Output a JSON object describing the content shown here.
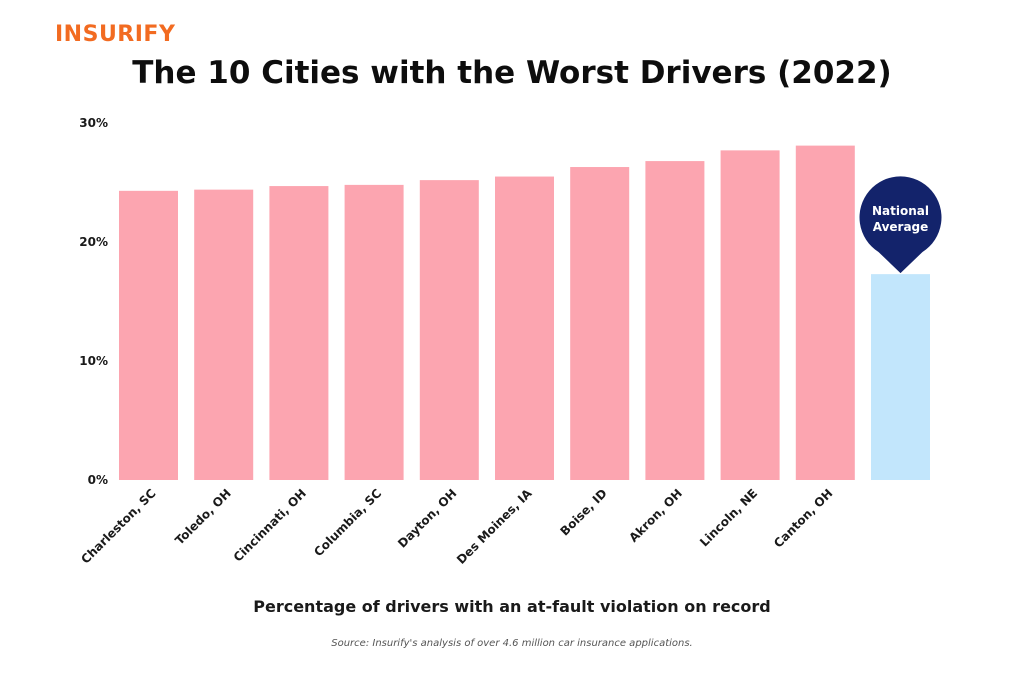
{
  "brand": {
    "logo_text": "INSURIFY",
    "logo_color": "#f26b21"
  },
  "chart_data": {
    "type": "bar",
    "title": "The 10 Cities with the Worst Drivers (2022)",
    "xlabel": "Percentage of drivers with an at-fault violation on record",
    "ylabel": "",
    "ylim": [
      0,
      30
    ],
    "yticks": [
      0,
      10,
      20,
      30
    ],
    "ytick_labels": [
      "0%",
      "10%",
      "20%",
      "30%"
    ],
    "categories": [
      "Charleston, SC",
      "Toledo, OH",
      "Cincinnati, OH",
      "Columbia, SC",
      "Dayton, OH",
      "Des Moines, IA",
      "Boise, ID",
      "Akron, OH",
      "Lincoln, NE",
      "Canton, OH",
      ""
    ],
    "values": [
      24.3,
      24.4,
      24.7,
      24.8,
      25.2,
      25.5,
      26.3,
      26.8,
      27.7,
      28.1,
      17.3
    ],
    "bar_colors": [
      "#fca5b0",
      "#fca5b0",
      "#fca5b0",
      "#fca5b0",
      "#fca5b0",
      "#fca5b0",
      "#fca5b0",
      "#fca5b0",
      "#fca5b0",
      "#fca5b0",
      "#c2e6fc"
    ],
    "marker": {
      "label_line1": "National",
      "label_line2": "Average",
      "color": "#13236b"
    },
    "grid": false,
    "legend": "none"
  },
  "source": "Source: Insurify's analysis of over 4.6 million car insurance applications."
}
